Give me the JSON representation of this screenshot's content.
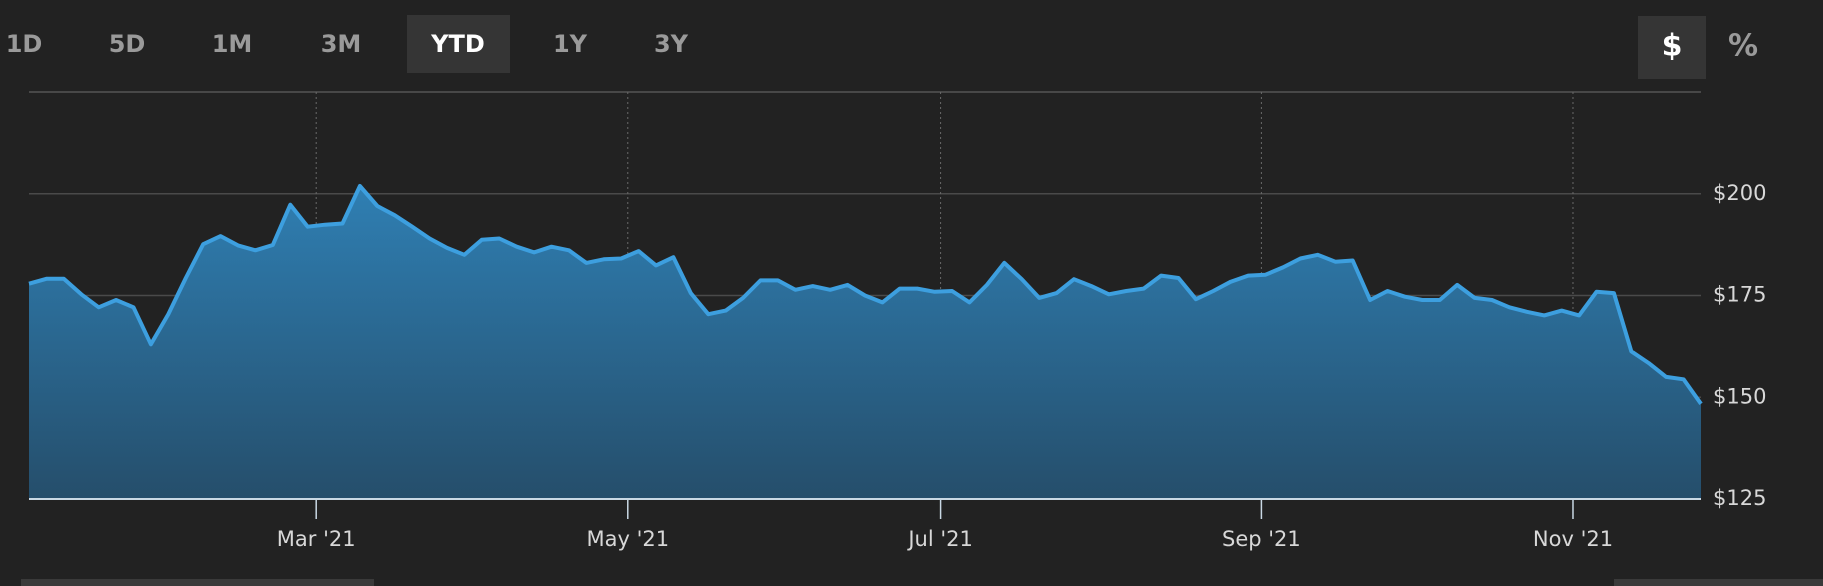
{
  "range_buttons": [
    "1D",
    "5D",
    "1M",
    "3M",
    "YTD",
    "1Y",
    "3Y"
  ],
  "unit_toggle": [
    "$",
    "%"
  ],
  "chart_data": {
    "type": "area",
    "color": "#3d9fdf",
    "values": [
      177.9,
      179.1,
      179.1,
      175.3,
      172.1,
      173.9,
      172.1,
      163,
      170.4,
      179.3,
      187.6,
      189.6,
      187.3,
      186.1,
      187.4,
      197.3,
      191.9,
      192.4,
      192.7,
      201.9,
      197,
      194.7,
      191.9,
      189,
      186.7,
      185,
      188.7,
      189,
      187,
      185.6,
      187,
      186.1,
      183,
      183.9,
      184.1,
      185.9,
      182.4,
      184.4,
      175.6,
      170.4,
      171.3,
      174.4,
      178.7,
      178.7,
      176.4,
      177.3,
      176.4,
      177.6,
      175,
      173.3,
      176.7,
      176.7,
      175.9,
      176.1,
      173.3,
      177.6,
      183,
      179,
      174.4,
      175.6,
      179,
      177.3,
      175.3,
      176.1,
      176.7,
      179.9,
      179.3,
      174.1,
      176.1,
      178.4,
      179.9,
      180.1,
      181.9,
      184.1,
      185,
      183.3,
      183.6,
      173.9,
      176.1,
      174.7,
      173.9,
      173.9,
      177.6,
      174.4,
      173.9,
      172.1,
      171,
      170.1,
      171.3,
      170.1,
      175.9,
      175.6,
      161.3,
      158.4,
      155,
      154.4,
      148.4
    ],
    "xlim": [
      0,
      96
    ],
    "xticks": [
      {
        "value": 16.49,
        "label": "Mar '21"
      },
      {
        "value": 34.38,
        "label": "May '21"
      },
      {
        "value": 52.34,
        "label": "Jul '21"
      },
      {
        "value": 70.76,
        "label": "Sep '21"
      },
      {
        "value": 88.65,
        "label": "Nov '21"
      }
    ],
    "ylim": [
      125,
      225
    ],
    "yticks": [
      {
        "value": 125,
        "label": "$125"
      },
      {
        "value": 150,
        "label": "$150"
      },
      {
        "value": 175,
        "label": "$175"
      },
      {
        "value": 200,
        "label": "$200"
      }
    ],
    "grid": true
  }
}
